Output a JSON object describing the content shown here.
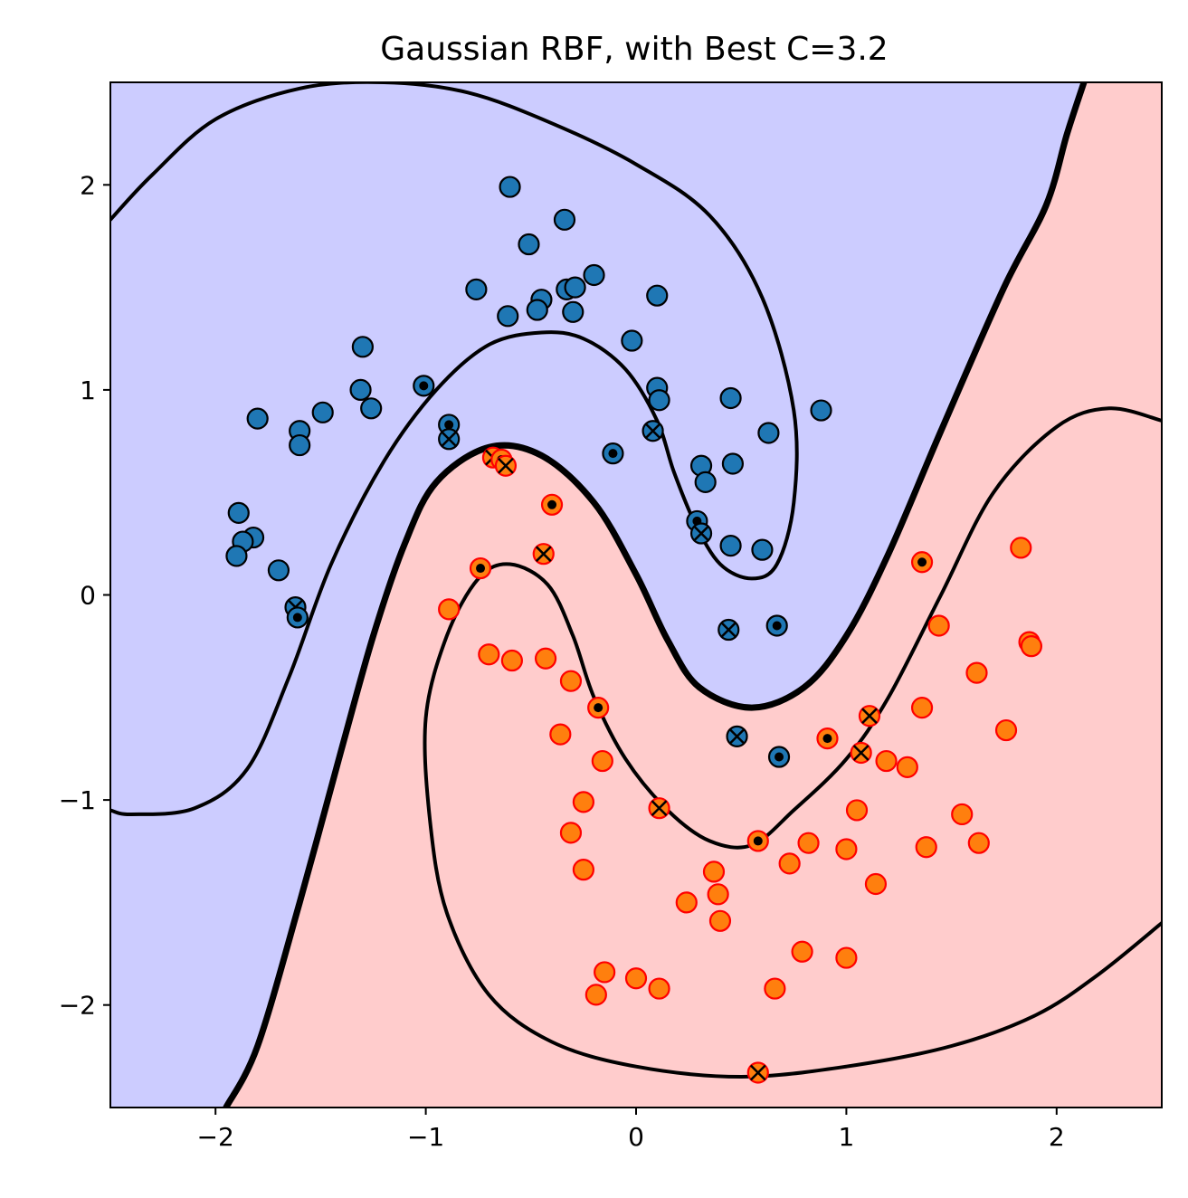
{
  "chart_data": {
    "type": "scatter",
    "title": "Gaussian RBF, with Best C=3.2",
    "xlabel": "",
    "ylabel": "",
    "xlim": [
      -2.5,
      2.5
    ],
    "ylim": [
      -2.5,
      2.5
    ],
    "grid": false,
    "x_ticks": [
      {
        "value": -2,
        "label": "−2"
      },
      {
        "value": -1,
        "label": "−1"
      },
      {
        "value": 0,
        "label": "0"
      },
      {
        "value": 1,
        "label": "1"
      },
      {
        "value": 2,
        "label": "2"
      }
    ],
    "y_ticks": [
      {
        "value": -2,
        "label": "−2"
      },
      {
        "value": -1,
        "label": "−1"
      },
      {
        "value": 0,
        "label": "0"
      },
      {
        "value": 1,
        "label": "1"
      },
      {
        "value": 2,
        "label": "2"
      }
    ],
    "colors": {
      "region_class0": "#ccccff",
      "region_class1": "#ffcccc",
      "class0_fill": "#1f77b4",
      "class0_edge": "#000000",
      "class1_fill": "#ff7f0e",
      "class1_edge": "#ff0000",
      "contour": "#000000"
    },
    "contours": [
      {
        "level": "decision-boundary",
        "points": [
          [
            2.13,
            2.5
          ],
          [
            2.05,
            2.25
          ],
          [
            1.95,
            1.9
          ],
          [
            1.75,
            1.5
          ],
          [
            1.45,
            0.8
          ],
          [
            1.2,
            0.2
          ],
          [
            1.0,
            -0.2
          ],
          [
            0.8,
            -0.45
          ],
          [
            0.55,
            -0.55
          ],
          [
            0.3,
            -0.45
          ],
          [
            0.15,
            -0.22
          ],
          [
            0.0,
            0.1
          ],
          [
            -0.2,
            0.45
          ],
          [
            -0.45,
            0.68
          ],
          [
            -0.7,
            0.72
          ],
          [
            -0.95,
            0.55
          ],
          [
            -1.1,
            0.25
          ],
          [
            -1.25,
            -0.2
          ],
          [
            -1.4,
            -0.75
          ],
          [
            -1.6,
            -1.5
          ],
          [
            -1.8,
            -2.2
          ],
          [
            -1.95,
            -2.5
          ]
        ]
      },
      {
        "level": "margin-upper",
        "points": [
          [
            -2.5,
            1.83
          ],
          [
            -2.3,
            2.05
          ],
          [
            -2.0,
            2.32
          ],
          [
            -1.6,
            2.47
          ],
          [
            -1.2,
            2.5
          ],
          [
            -0.8,
            2.45
          ],
          [
            -0.4,
            2.3
          ],
          [
            0.0,
            2.1
          ],
          [
            0.35,
            1.85
          ],
          [
            0.6,
            1.45
          ],
          [
            0.75,
            0.9
          ],
          [
            0.75,
            0.45
          ],
          [
            0.67,
            0.15
          ],
          [
            0.55,
            0.08
          ],
          [
            0.4,
            0.15
          ],
          [
            0.28,
            0.35
          ],
          [
            0.18,
            0.6
          ],
          [
            0.1,
            0.85
          ],
          [
            -0.05,
            1.1
          ],
          [
            -0.25,
            1.25
          ],
          [
            -0.45,
            1.28
          ],
          [
            -0.7,
            1.22
          ],
          [
            -0.95,
            1.0
          ],
          [
            -1.2,
            0.65
          ],
          [
            -1.45,
            0.15
          ],
          [
            -1.65,
            -0.4
          ],
          [
            -1.85,
            -0.85
          ],
          [
            -2.1,
            -1.04
          ],
          [
            -2.4,
            -1.07
          ],
          [
            -2.5,
            -1.05
          ]
        ]
      },
      {
        "level": "margin-lower",
        "points": [
          [
            2.5,
            0.85
          ],
          [
            2.25,
            0.91
          ],
          [
            2.0,
            0.82
          ],
          [
            1.7,
            0.5
          ],
          [
            1.45,
            0.0
          ],
          [
            1.2,
            -0.5
          ],
          [
            1.0,
            -0.8
          ],
          [
            0.75,
            -1.05
          ],
          [
            0.55,
            -1.22
          ],
          [
            0.35,
            -1.2
          ],
          [
            0.15,
            -1.05
          ],
          [
            -0.05,
            -0.8
          ],
          [
            -0.2,
            -0.5
          ],
          [
            -0.3,
            -0.2
          ],
          [
            -0.42,
            0.05
          ],
          [
            -0.6,
            0.15
          ],
          [
            -0.75,
            0.08
          ],
          [
            -0.9,
            -0.2
          ],
          [
            -1.0,
            -0.6
          ],
          [
            -0.98,
            -1.1
          ],
          [
            -0.9,
            -1.55
          ],
          [
            -0.7,
            -1.95
          ],
          [
            -0.4,
            -2.18
          ],
          [
            0.0,
            -2.3
          ],
          [
            0.5,
            -2.35
          ],
          [
            1.0,
            -2.3
          ],
          [
            1.5,
            -2.2
          ],
          [
            1.9,
            -2.05
          ],
          [
            2.2,
            -1.85
          ],
          [
            2.5,
            -1.6
          ]
        ]
      }
    ],
    "series": [
      {
        "class": 0,
        "points": [
          [
            -0.6,
            1.99
          ],
          [
            -0.34,
            1.83
          ],
          [
            -0.51,
            1.71
          ],
          [
            -0.2,
            1.56
          ],
          [
            -0.76,
            1.49
          ],
          [
            -0.33,
            1.49
          ],
          [
            -0.29,
            1.5
          ],
          [
            -0.45,
            1.44
          ],
          [
            -0.47,
            1.39
          ],
          [
            -0.61,
            1.36
          ],
          [
            -0.3,
            1.38
          ],
          [
            0.1,
            1.46
          ],
          [
            -0.02,
            1.24
          ],
          [
            -1.3,
            1.21
          ],
          [
            -1.31,
            1.0
          ],
          [
            -1.26,
            0.91
          ],
          [
            -1.49,
            0.89
          ],
          [
            -1.8,
            0.86
          ],
          [
            -1.6,
            0.8
          ],
          [
            -1.6,
            0.73
          ],
          [
            0.45,
            0.96
          ],
          [
            0.1,
            1.01
          ],
          [
            0.11,
            0.95
          ],
          [
            0.63,
            0.79
          ],
          [
            0.88,
            0.9
          ],
          [
            0.46,
            0.64
          ],
          [
            0.31,
            0.63
          ],
          [
            0.33,
            0.55
          ],
          [
            0.45,
            0.24
          ],
          [
            0.6,
            0.22
          ],
          [
            -1.89,
            0.4
          ],
          [
            -1.82,
            0.28
          ],
          [
            -1.87,
            0.26
          ],
          [
            -1.9,
            0.19
          ],
          [
            -1.7,
            0.12
          ]
        ],
        "support_vectors": [
          [
            -1.01,
            1.02
          ],
          [
            -1.62,
            -0.06
          ],
          [
            -0.89,
            0.83
          ],
          [
            -0.89,
            0.76
          ],
          [
            -0.11,
            0.69
          ],
          [
            0.08,
            0.8
          ],
          [
            0.29,
            0.36
          ],
          [
            0.31,
            0.3
          ],
          [
            -1.61,
            -0.11
          ],
          [
            0.44,
            -0.17
          ],
          [
            0.67,
            -0.15
          ],
          [
            0.48,
            -0.69
          ],
          [
            0.68,
            -0.79
          ]
        ]
      },
      {
        "class": 1,
        "points": [
          [
            -0.89,
            -0.07
          ],
          [
            -0.7,
            -0.29
          ],
          [
            -0.59,
            -0.32
          ],
          [
            -0.43,
            -0.31
          ],
          [
            -0.31,
            -0.42
          ],
          [
            -0.36,
            -0.68
          ],
          [
            -0.16,
            -0.81
          ],
          [
            -0.25,
            -1.01
          ],
          [
            -0.31,
            -1.16
          ],
          [
            -0.25,
            -1.34
          ],
          [
            1.83,
            0.23
          ],
          [
            1.44,
            -0.15
          ],
          [
            1.87,
            -0.23
          ],
          [
            1.88,
            -0.25
          ],
          [
            1.62,
            -0.38
          ],
          [
            1.36,
            -0.55
          ],
          [
            1.76,
            -0.66
          ],
          [
            1.19,
            -0.81
          ],
          [
            1.29,
            -0.84
          ],
          [
            1.05,
            -1.05
          ],
          [
            1.55,
            -1.07
          ],
          [
            1.38,
            -1.23
          ],
          [
            1.63,
            -1.21
          ],
          [
            0.82,
            -1.21
          ],
          [
            1.0,
            -1.24
          ],
          [
            0.73,
            -1.31
          ],
          [
            0.37,
            -1.35
          ],
          [
            0.39,
            -1.46
          ],
          [
            1.14,
            -1.41
          ],
          [
            0.24,
            -1.5
          ],
          [
            0.4,
            -1.59
          ],
          [
            0.79,
            -1.74
          ],
          [
            1.0,
            -1.77
          ],
          [
            -0.15,
            -1.84
          ],
          [
            0.0,
            -1.87
          ],
          [
            0.11,
            -1.92
          ],
          [
            -0.19,
            -1.95
          ],
          [
            0.66,
            -1.92
          ]
        ],
        "support_vectors": [
          [
            -0.74,
            0.13
          ],
          [
            -0.68,
            0.67
          ],
          [
            -0.64,
            0.66
          ],
          [
            -0.62,
            0.63
          ],
          [
            -0.4,
            0.44
          ],
          [
            -0.44,
            0.2
          ],
          [
            -0.18,
            -0.55
          ],
          [
            0.11,
            -1.04
          ],
          [
            0.58,
            -1.2
          ],
          [
            1.07,
            -0.77
          ],
          [
            0.91,
            -0.7
          ],
          [
            1.11,
            -0.59
          ],
          [
            1.36,
            0.16
          ],
          [
            0.58,
            -2.33
          ]
        ]
      }
    ]
  }
}
